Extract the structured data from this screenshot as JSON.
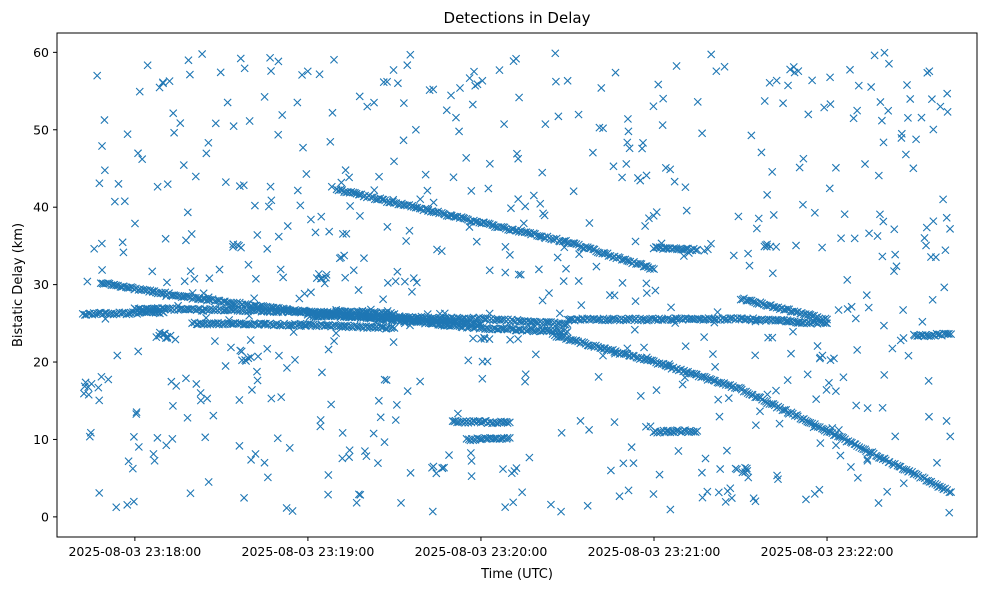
{
  "chart_data": {
    "type": "scatter",
    "title": "Detections in Delay",
    "xlabel": "Time (UTC)",
    "ylabel": "Bistatic Delay (km)",
    "x_start": "2025-08-03 23:17:42",
    "x_end": "2025-08-03 23:22:43",
    "xlim": [
      "2025-08-03 23:17:33",
      "2025-08-03 23:22:52"
    ],
    "ylim": [
      -2.6,
      62.5
    ],
    "x_ticks": [
      "2025-08-03 23:18:00",
      "2025-08-03 23:19:00",
      "2025-08-03 23:20:00",
      "2025-08-03 23:21:00",
      "2025-08-03 23:22:00"
    ],
    "y_ticks": [
      0,
      10,
      20,
      30,
      40,
      50,
      60
    ],
    "marker": "x",
    "color": "#1f77b4",
    "grid": false,
    "tracks": [
      {
        "points": [
          [
            "2025-08-03 23:17:42",
            26.2
          ],
          [
            "2025-08-03 23:18:10",
            26.4
          ]
        ]
      },
      {
        "points": [
          [
            "2025-08-03 23:17:48",
            30.2
          ],
          [
            "2025-08-03 23:18:20",
            28.3
          ],
          [
            "2025-08-03 23:19:00",
            26.4
          ],
          [
            "2025-08-03 23:20:00",
            24.4
          ],
          [
            "2025-08-03 23:20:30",
            23.9
          ]
        ]
      },
      {
        "points": [
          [
            "2025-08-03 23:18:00",
            26.9
          ],
          [
            "2025-08-03 23:19:00",
            26.5
          ],
          [
            "2025-08-03 23:20:00",
            24.9
          ]
        ]
      },
      {
        "points": [
          [
            "2025-08-03 23:18:20",
            25.0
          ],
          [
            "2025-08-03 23:19:00",
            24.8
          ],
          [
            "2025-08-03 23:19:30",
            24.4
          ]
        ]
      },
      {
        "points": [
          [
            "2025-08-03 23:19:00",
            26.0
          ],
          [
            "2025-08-03 23:20:00",
            25.6
          ],
          [
            "2025-08-03 23:20:30",
            24.9
          ]
        ]
      },
      {
        "points": [
          [
            "2025-08-03 23:19:10",
            26.6
          ],
          [
            "2025-08-03 23:19:30",
            26.2
          ]
        ]
      },
      {
        "points": [
          [
            "2025-08-03 23:19:10",
            42.3
          ],
          [
            "2025-08-03 23:20:00",
            38.0
          ],
          [
            "2025-08-03 23:20:30",
            35.5
          ],
          [
            "2025-08-03 23:21:00",
            32.0
          ]
        ]
      },
      {
        "points": [
          [
            "2025-08-03 23:20:25",
            23.5
          ],
          [
            "2025-08-03 23:21:00",
            20.0
          ],
          [
            "2025-08-03 23:21:30",
            16.5
          ],
          [
            "2025-08-03 23:21:55",
            12.0
          ],
          [
            "2025-08-03 23:22:43",
            3.2
          ]
        ]
      },
      {
        "points": [
          [
            "2025-08-03 23:20:30",
            25.5
          ],
          [
            "2025-08-03 23:21:00",
            25.5
          ],
          [
            "2025-08-03 23:21:30",
            25.6
          ],
          [
            "2025-08-03 23:22:00",
            25.0
          ]
        ]
      },
      {
        "points": [
          [
            "2025-08-03 23:21:30",
            28.2
          ],
          [
            "2025-08-03 23:22:00",
            25.5
          ]
        ]
      },
      {
        "points": [
          [
            "2025-08-03 23:22:30",
            23.4
          ],
          [
            "2025-08-03 23:22:43",
            23.6
          ]
        ]
      },
      {
        "points": [
          [
            "2025-08-03 23:19:50",
            12.3
          ],
          [
            "2025-08-03 23:20:10",
            12.2
          ]
        ]
      },
      {
        "points": [
          [
            "2025-08-03 23:19:55",
            10.0
          ],
          [
            "2025-08-03 23:20:10",
            10.2
          ]
        ]
      },
      {
        "points": [
          [
            "2025-08-03 23:21:00",
            11.0
          ],
          [
            "2025-08-03 23:21:15",
            11.1
          ]
        ]
      },
      {
        "points": [
          [
            "2025-08-03 23:21:00",
            34.8
          ],
          [
            "2025-08-03 23:21:15",
            34.5
          ]
        ]
      }
    ],
    "clusters": [
      {
        "time": "2025-08-03 23:17:45",
        "y": 17.0,
        "count": 5
      },
      {
        "time": "2025-08-03 23:18:10",
        "y": 23.5,
        "count": 8
      },
      {
        "time": "2025-08-03 23:18:35",
        "y": 35.0,
        "count": 5
      },
      {
        "time": "2025-08-03 23:18:40",
        "y": 20.5,
        "count": 6
      },
      {
        "time": "2025-08-03 23:19:05",
        "y": 31.0,
        "count": 5
      },
      {
        "time": "2025-08-03 23:19:45",
        "y": 6.0,
        "count": 5
      },
      {
        "time": "2025-08-03 23:20:10",
        "y": 6.0,
        "count": 4
      },
      {
        "time": "2025-08-03 23:20:00",
        "y": 23.0,
        "count": 5
      },
      {
        "time": "2025-08-03 23:21:30",
        "y": 6.0,
        "count": 6
      },
      {
        "time": "2025-08-03 23:21:40",
        "y": 35.0,
        "count": 6
      },
      {
        "time": "2025-08-03 23:22:00",
        "y": 20.5,
        "count": 5
      }
    ],
    "scatter_noise": {
      "count": 620,
      "y_range": [
        0.5,
        60
      ],
      "time_range": [
        "2025-08-03 23:17:42",
        "2025-08-03 23:22:43"
      ]
    }
  }
}
